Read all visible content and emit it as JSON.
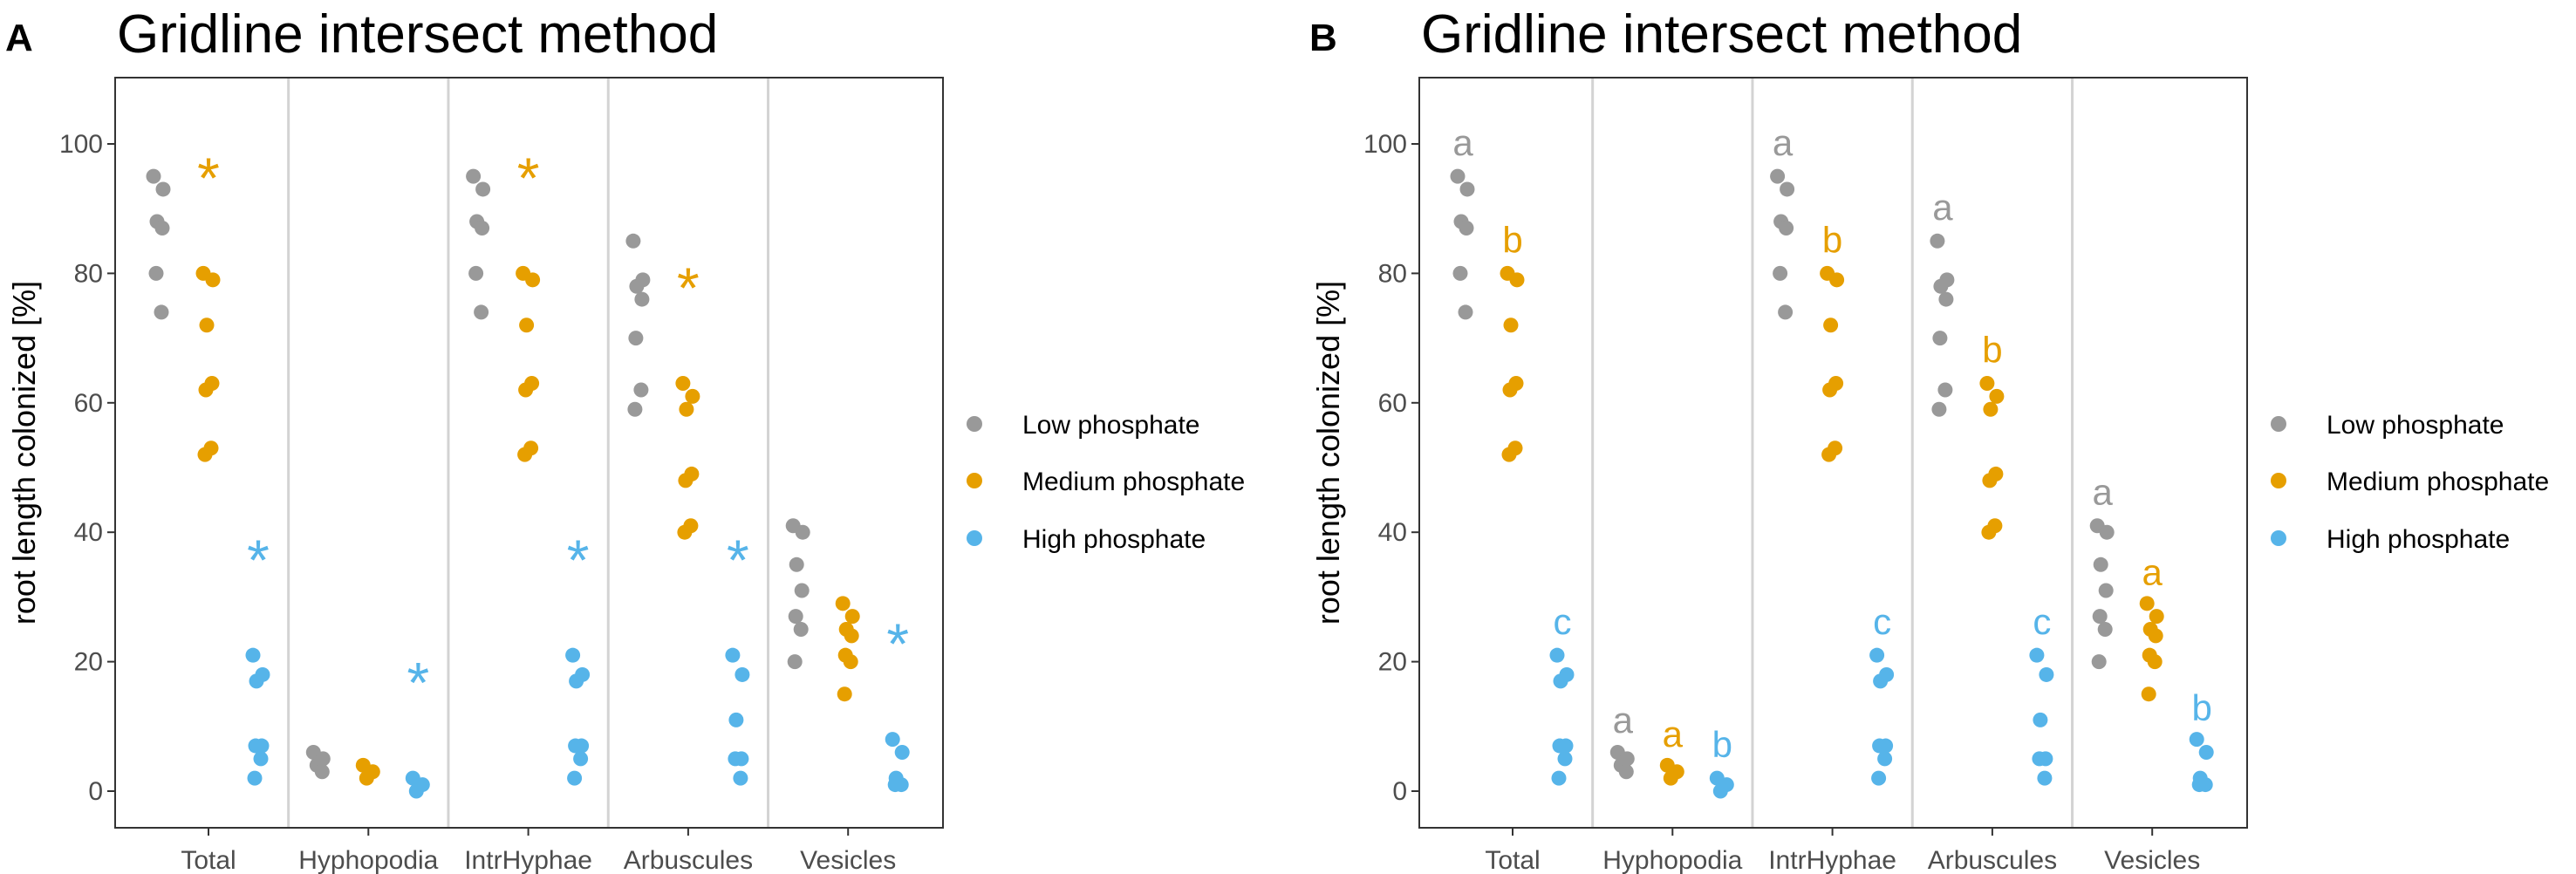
{
  "chart_data": [
    {
      "panel_label": "A",
      "type": "scatter",
      "title": "Gridline intersect method",
      "xlabel": "",
      "ylabel": "root length colonized [%]",
      "ylim": [
        -5.5,
        110
      ],
      "yticks": [
        0,
        20,
        40,
        60,
        80,
        100
      ],
      "grid": false,
      "legend_position": "right",
      "categories": [
        "Total",
        "Hyphopodia",
        "IntrHyphae",
        "Arbuscules",
        "Vesicles"
      ],
      "series": [
        {
          "name": "Low phosphate",
          "color": "#999999",
          "values": [
            [
              95,
              93,
              88,
              87,
              80,
              74
            ],
            [
              6,
              5,
              4,
              3
            ],
            [
              95,
              93,
              88,
              87,
              80,
              74
            ],
            [
              85,
              79,
              78,
              76,
              70,
              62,
              59
            ],
            [
              41,
              40,
              35,
              31,
              27,
              25,
              20
            ]
          ]
        },
        {
          "name": "Medium phosphate",
          "color": "#E69F00",
          "values": [
            [
              80,
              79,
              72,
              63,
              62,
              53,
              52
            ],
            [
              4,
              3,
              2
            ],
            [
              80,
              79,
              72,
              63,
              62,
              53,
              52
            ],
            [
              63,
              61,
              59,
              49,
              48,
              41,
              40
            ],
            [
              29,
              27,
              25,
              24,
              21,
              20,
              15
            ]
          ]
        },
        {
          "name": "High phosphate",
          "color": "#56B4E9",
          "values": [
            [
              21,
              18,
              17,
              7,
              7,
              5,
              2
            ],
            [
              2,
              1,
              0
            ],
            [
              21,
              18,
              17,
              7,
              7,
              5,
              2
            ],
            [
              21,
              18,
              11,
              5,
              5,
              2
            ],
            [
              8,
              6,
              2,
              1,
              1
            ]
          ]
        }
      ],
      "annotations": [
        {
          "category": 0,
          "series": 1,
          "text": "*",
          "y": 96.5
        },
        {
          "category": 0,
          "series": 2,
          "text": "*",
          "y": 37.5
        },
        {
          "category": 1,
          "series": 2,
          "text": "*",
          "y": 18.5
        },
        {
          "category": 2,
          "series": 1,
          "text": "*",
          "y": 96.5
        },
        {
          "category": 2,
          "series": 2,
          "text": "*",
          "y": 37.5
        },
        {
          "category": 3,
          "series": 1,
          "text": "*",
          "y": 79.5
        },
        {
          "category": 3,
          "series": 2,
          "text": "*",
          "y": 37.5
        },
        {
          "category": 4,
          "series": 2,
          "text": "*",
          "y": 24.5
        }
      ]
    },
    {
      "panel_label": "B",
      "type": "scatter",
      "title": "Gridline intersect method",
      "xlabel": "",
      "ylabel": "root length colonized [%]",
      "ylim": [
        -5.5,
        110
      ],
      "yticks": [
        0,
        20,
        40,
        60,
        80,
        100
      ],
      "grid": false,
      "legend_position": "right",
      "categories": [
        "Total",
        "Hyphopodia",
        "IntrHyphae",
        "Arbuscules",
        "Vesicles"
      ],
      "series": [
        {
          "name": "Low phosphate",
          "color": "#999999",
          "values": [
            [
              95,
              93,
              88,
              87,
              80,
              74
            ],
            [
              6,
              5,
              4,
              3
            ],
            [
              95,
              93,
              88,
              87,
              80,
              74
            ],
            [
              85,
              79,
              78,
              76,
              70,
              62,
              59
            ],
            [
              41,
              40,
              35,
              31,
              27,
              25,
              20
            ]
          ]
        },
        {
          "name": "Medium phosphate",
          "color": "#E69F00",
          "values": [
            [
              80,
              79,
              72,
              63,
              62,
              53,
              52
            ],
            [
              4,
              3,
              2
            ],
            [
              80,
              79,
              72,
              63,
              62,
              53,
              52
            ],
            [
              63,
              61,
              59,
              49,
              48,
              41,
              40
            ],
            [
              29,
              27,
              25,
              24,
              21,
              20,
              15
            ]
          ]
        },
        {
          "name": "High phosphate",
          "color": "#56B4E9",
          "values": [
            [
              21,
              18,
              17,
              7,
              7,
              5,
              2
            ],
            [
              2,
              1,
              0
            ],
            [
              21,
              18,
              17,
              7,
              7,
              5,
              2
            ],
            [
              21,
              18,
              11,
              5,
              5,
              2
            ],
            [
              8,
              6,
              2,
              1,
              1
            ]
          ]
        }
      ],
      "annotations": [
        {
          "category": 0,
          "series": 0,
          "text": "a",
          "y": 100
        },
        {
          "category": 0,
          "series": 1,
          "text": "b",
          "y": 85
        },
        {
          "category": 0,
          "series": 2,
          "text": "c",
          "y": 26
        },
        {
          "category": 1,
          "series": 0,
          "text": "a",
          "y": 10.8
        },
        {
          "category": 1,
          "series": 1,
          "text": "a",
          "y": 8.6
        },
        {
          "category": 1,
          "series": 2,
          "text": "b",
          "y": 7
        },
        {
          "category": 2,
          "series": 0,
          "text": "a",
          "y": 100
        },
        {
          "category": 2,
          "series": 1,
          "text": "b",
          "y": 85
        },
        {
          "category": 2,
          "series": 2,
          "text": "c",
          "y": 26
        },
        {
          "category": 3,
          "series": 0,
          "text": "a",
          "y": 90
        },
        {
          "category": 3,
          "series": 1,
          "text": "b",
          "y": 68
        },
        {
          "category": 3,
          "series": 2,
          "text": "c",
          "y": 26
        },
        {
          "category": 4,
          "series": 0,
          "text": "a",
          "y": 46
        },
        {
          "category": 4,
          "series": 1,
          "text": "a",
          "y": 33.6
        },
        {
          "category": 4,
          "series": 2,
          "text": "b",
          "y": 12.7
        }
      ]
    }
  ]
}
